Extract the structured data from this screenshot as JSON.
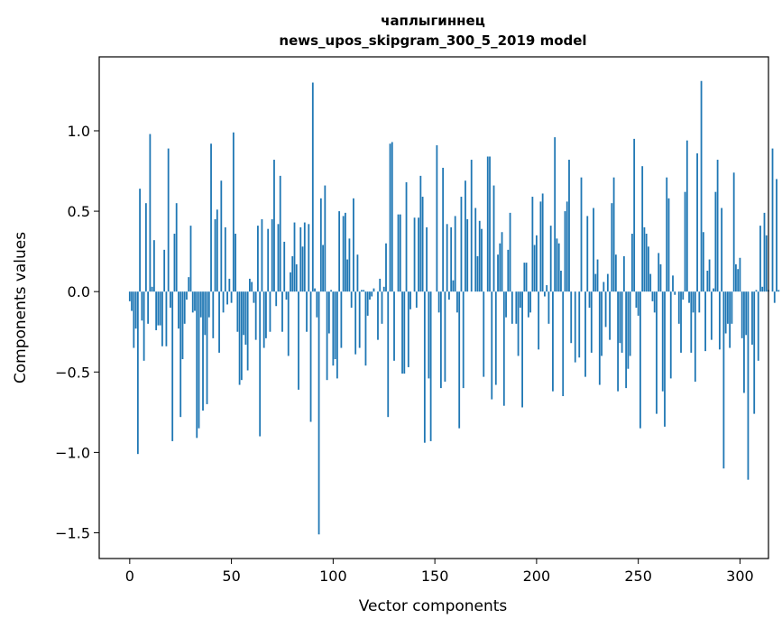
{
  "chart_data": {
    "type": "bar",
    "title_line1": "чаплыгиннец",
    "title_line2": "news_upos_skipgram_300_5_2019 model",
    "xlabel": "Vector components",
    "ylabel": "Components values",
    "xlim": [
      -15,
      314
    ],
    "ylim": [
      -1.66,
      1.46
    ],
    "x_ticks": [
      0,
      50,
      100,
      150,
      200,
      250,
      300
    ],
    "y_ticks": [
      -1.5,
      -1.0,
      -0.5,
      0.0,
      0.5,
      1.0
    ],
    "y_tick_labels": [
      "−1.5",
      "−1.0",
      "−0.5",
      "0.0",
      "0.5",
      "1.0"
    ],
    "bar_color": "#1f77b4",
    "grid": false,
    "values": [
      -0.06,
      -0.12,
      -0.35,
      -0.23,
      -1.01,
      0.64,
      -0.18,
      -0.43,
      0.55,
      -0.2,
      0.98,
      0.03,
      0.32,
      -0.24,
      -0.21,
      -0.21,
      -0.34,
      0.26,
      -0.34,
      0.89,
      -0.1,
      -0.93,
      0.36,
      0.55,
      -0.23,
      -0.78,
      -0.42,
      -0.2,
      -0.05,
      0.09,
      0.41,
      -0.13,
      -0.12,
      -0.91,
      -0.85,
      -0.16,
      -0.74,
      -0.27,
      -0.7,
      -0.16,
      0.92,
      -0.29,
      0.45,
      0.51,
      -0.38,
      0.69,
      -0.13,
      0.4,
      -0.08,
      0.08,
      -0.07,
      0.99,
      0.36,
      -0.25,
      -0.58,
      -0.55,
      -0.27,
      -0.33,
      -0.49,
      0.08,
      0.06,
      -0.07,
      -0.3,
      0.41,
      -0.9,
      0.45,
      -0.35,
      -0.29,
      0.39,
      -0.25,
      0.45,
      0.82,
      -0.09,
      0.42,
      0.72,
      -0.25,
      0.31,
      -0.05,
      -0.4,
      0.12,
      0.22,
      0.43,
      0.17,
      -0.61,
      0.4,
      0.28,
      0.43,
      -0.25,
      0.42,
      -0.81,
      1.3,
      0.02,
      -0.16,
      -1.51,
      0.58,
      0.29,
      0.66,
      -0.55,
      -0.26,
      0.01,
      -0.46,
      -0.42,
      -0.54,
      0.5,
      -0.35,
      0.47,
      0.49,
      0.2,
      0.33,
      -0.1,
      0.58,
      -0.39,
      0.23,
      -0.35,
      0.01,
      0.01,
      -0.46,
      -0.15,
      -0.05,
      -0.03,
      0.02,
      0.0,
      -0.3,
      0.08,
      -0.2,
      0.03,
      0.3,
      -0.78,
      0.92,
      0.93,
      -0.43,
      0.0,
      0.48,
      0.48,
      -0.51,
      -0.51,
      0.68,
      -0.47,
      -0.11,
      0.0,
      0.46,
      -0.1,
      0.46,
      0.72,
      0.59,
      -0.94,
      0.4,
      -0.54,
      -0.93,
      0.0,
      0.0,
      0.91,
      -0.13,
      -0.6,
      0.77,
      -0.56,
      0.42,
      -0.05,
      0.4,
      0.07,
      0.47,
      -0.13,
      -0.85,
      0.59,
      -0.6,
      0.69,
      0.45,
      0.0,
      0.82,
      0.0,
      0.52,
      0.22,
      0.44,
      0.39,
      -0.53,
      0.0,
      0.84,
      0.84,
      -0.67,
      0.66,
      -0.58,
      0.23,
      0.3,
      0.37,
      -0.71,
      -0.16,
      0.26,
      0.49,
      -0.2,
      0.0,
      -0.2,
      -0.4,
      -0.1,
      -0.72,
      0.18,
      0.18,
      -0.16,
      -0.13,
      0.59,
      0.29,
      0.35,
      -0.36,
      0.56,
      0.61,
      -0.03,
      0.04,
      -0.2,
      0.41,
      -0.62,
      0.96,
      0.33,
      0.3,
      0.13,
      -0.65,
      0.5,
      0.56,
      0.82,
      -0.32,
      0.0,
      -0.44,
      0.0,
      -0.41,
      0.71,
      0.0,
      -0.53,
      0.47,
      -0.1,
      -0.38,
      0.52,
      0.11,
      0.2,
      -0.58,
      -0.4,
      0.06,
      -0.22,
      0.11,
      -0.3,
      0.55,
      0.71,
      0.23,
      -0.62,
      -0.32,
      -0.38,
      0.22,
      -0.6,
      -0.48,
      -0.4,
      0.36,
      0.95,
      -0.1,
      -0.15,
      -0.85,
      0.78,
      0.4,
      0.36,
      0.28,
      0.11,
      -0.06,
      -0.13,
      -0.76,
      0.24,
      0.17,
      -0.62,
      -0.84,
      0.71,
      0.58,
      -0.54,
      0.1,
      -0.02,
      0.0,
      -0.2,
      -0.38,
      -0.05,
      0.62,
      0.94,
      -0.07,
      -0.38,
      -0.13,
      -0.56,
      0.86,
      -0.13,
      1.31,
      0.37,
      -0.37,
      0.13,
      0.2,
      -0.3,
      0.02,
      0.62,
      0.82,
      -0.36,
      0.52,
      -1.1,
      -0.26,
      -0.2,
      -0.35,
      -0.2,
      0.74,
      0.17,
      0.14,
      0.21,
      -0.29,
      -0.63,
      -0.27,
      -1.17,
      0.0,
      -0.33,
      -0.76,
      0.01,
      -0.43,
      0.41,
      0.03,
      0.49,
      0.35,
      0.01,
      0.0,
      0.89,
      -0.07,
      0.7,
      0.01
    ]
  }
}
